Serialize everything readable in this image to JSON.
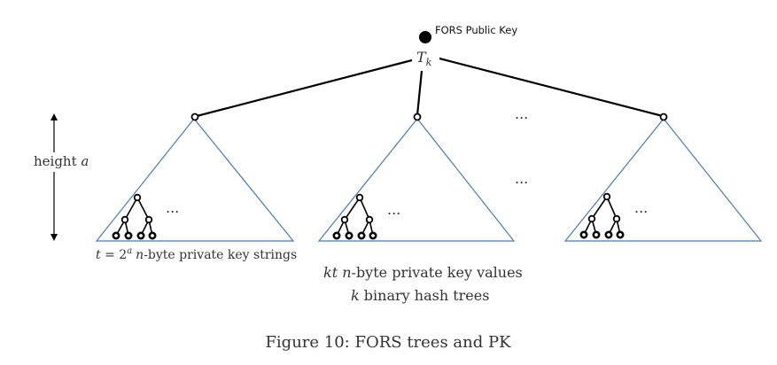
{
  "root": {
    "label": "FORS Public Key",
    "node_label_main": "T",
    "node_label_sub": "k"
  },
  "height_label": {
    "text": "height",
    "var": "a"
  },
  "ellipses": {
    "top": "...",
    "mid": "...",
    "tree1": "...",
    "tree2": "...",
    "tree3": "..."
  },
  "tree1_caption": {
    "t": "t",
    "eq": " = 2",
    "sup": "a",
    "n": "n",
    "rest": "-byte private key strings"
  },
  "center_caption": {
    "line1_kt": "kt",
    "line1_n": "n",
    "line1_rest": "-byte private key values",
    "line2_k": "k",
    "line2_rest": " binary hash trees"
  },
  "figure_caption": "Figure 10: FORS trees and PK",
  "colors": {
    "tree_outline": "#4a7ab0",
    "edges": "#000000",
    "text": "#333333"
  }
}
